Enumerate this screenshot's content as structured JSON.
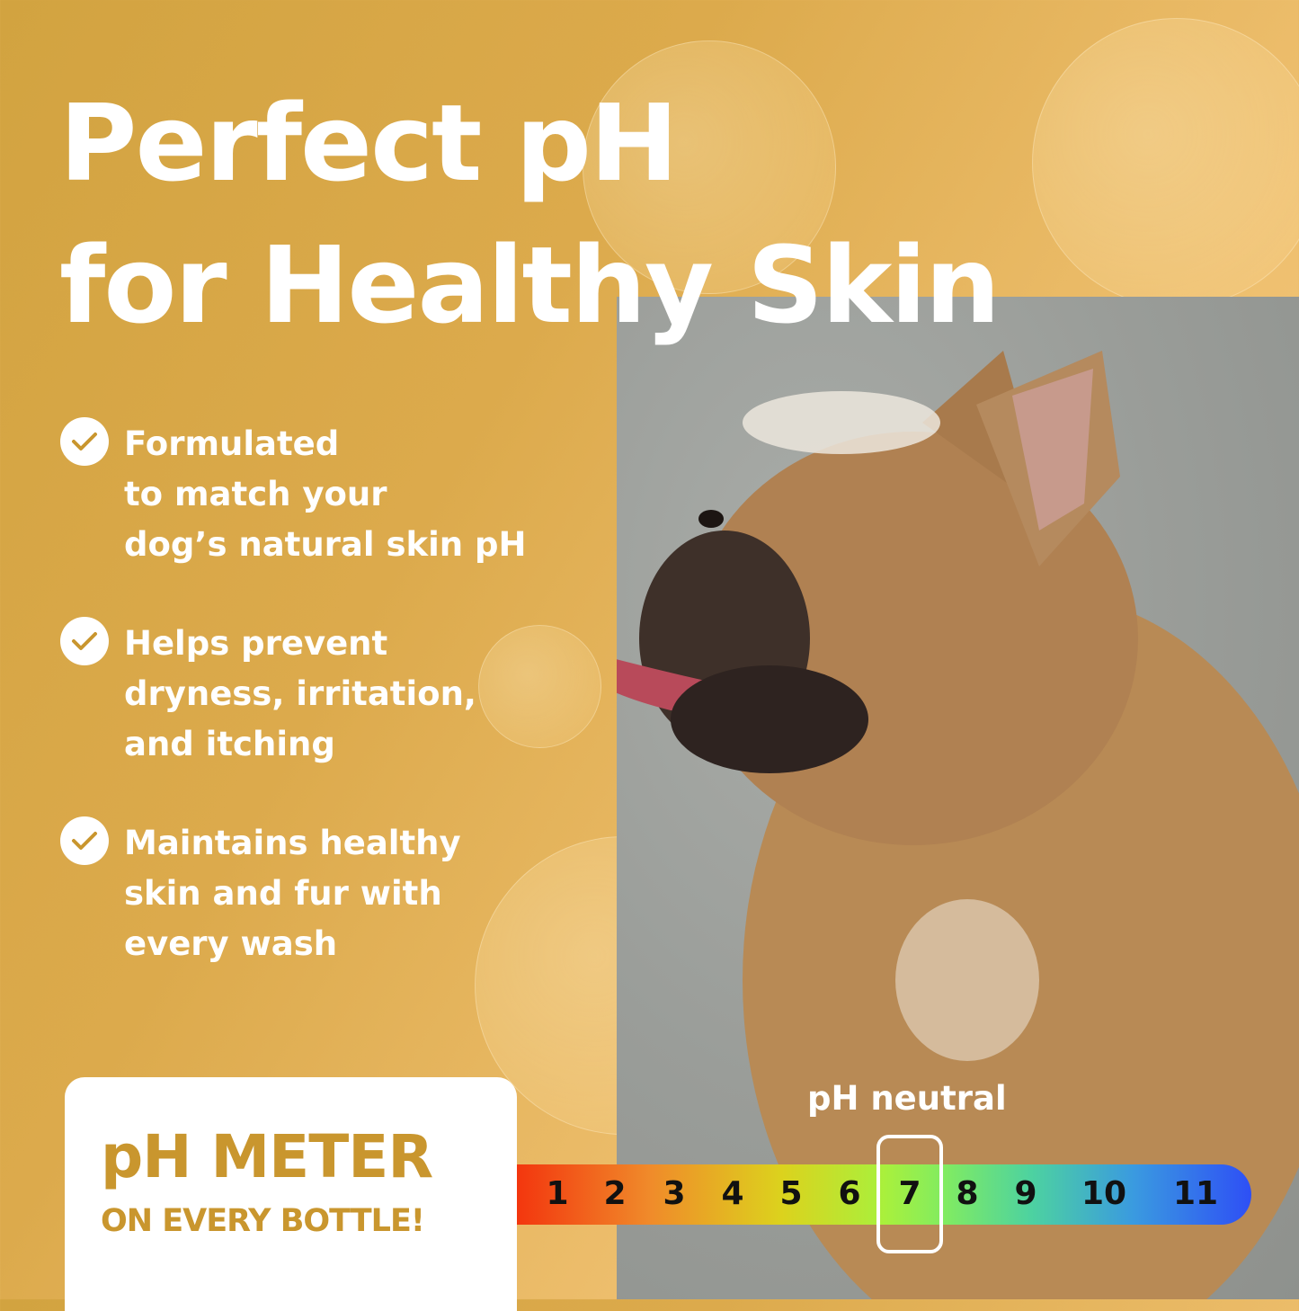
{
  "headline": {
    "line1": "Perfect pH",
    "line2": "for Healthy Skin"
  },
  "benefits": [
    {
      "icon": "check-circle-icon",
      "lines": [
        "Formulated",
        "to match your",
        "dog’s natural skin pH"
      ]
    },
    {
      "icon": "check-circle-icon",
      "lines": [
        "Helps prevent",
        "dryness, irritation,",
        "and itching"
      ]
    },
    {
      "icon": "check-circle-icon",
      "lines": [
        "Maintains healthy",
        "skin and fur with",
        "every wash"
      ]
    }
  ],
  "ph_meter": {
    "title": "pH METER",
    "subtitle": "ON EVERY BOTTLE!",
    "neutral_label": "pH neutral",
    "scale": [
      "1",
      "2",
      "3",
      "4",
      "5",
      "6",
      "7",
      "8",
      "9",
      "10",
      "11"
    ],
    "highlighted_value": "7"
  },
  "colors": {
    "background": "#dcaa4c",
    "accent": "#c9962e",
    "text": "#ffffff"
  }
}
